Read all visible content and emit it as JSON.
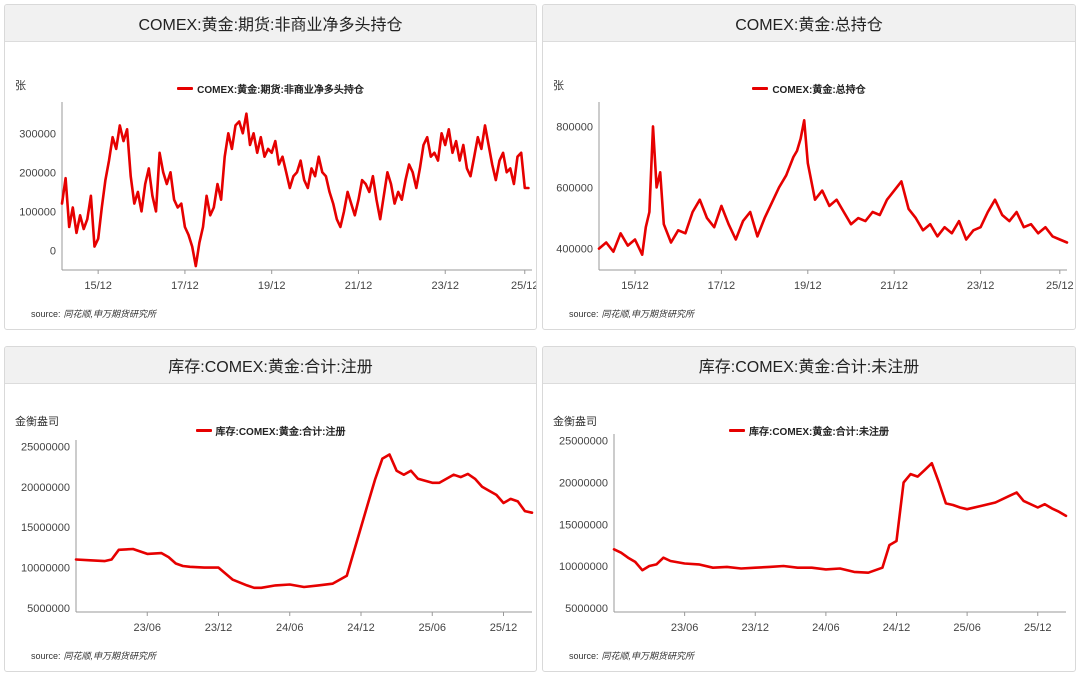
{
  "accent_color": "#e60000",
  "source_label": "source:",
  "source_name": "同花顺,申万期货研究所",
  "chart_data": [
    {
      "type": "line",
      "title": "COMEX:黄金:期货:非商业净多头持仓",
      "unit": "张",
      "legend": "COMEX:黄金:期货:非商业净多头持仓",
      "series": [
        {
          "name": "COMEX:黄金:期货:非商业净多头持仓",
          "color": "#e60000"
        }
      ],
      "x_ticks": [
        "15/12",
        "17/12",
        "19/12",
        "21/12",
        "23/12",
        "25/12"
      ],
      "y_ticks": [
        "0",
        "100000",
        "200000",
        "300000"
      ],
      "ylim": [
        -50000,
        380000
      ],
      "x_range": [
        0,
        130
      ],
      "x_tick_positions": [
        10,
        34,
        58,
        82,
        106,
        128
      ],
      "y_tick_values": [
        0,
        100000,
        200000,
        300000
      ],
      "x": [
        0,
        1,
        2,
        3,
        4,
        5,
        6,
        7,
        8,
        9,
        10,
        11,
        12,
        13,
        14,
        15,
        16,
        17,
        18,
        19,
        20,
        21,
        22,
        23,
        24,
        25,
        26,
        27,
        28,
        29,
        30,
        31,
        32,
        33,
        34,
        35,
        36,
        37,
        38,
        39,
        40,
        41,
        42,
        43,
        44,
        45,
        46,
        47,
        48,
        49,
        50,
        51,
        52,
        53,
        54,
        55,
        56,
        57,
        58,
        59,
        60,
        61,
        62,
        63,
        64,
        65,
        66,
        67,
        68,
        69,
        70,
        71,
        72,
        73,
        74,
        75,
        76,
        77,
        78,
        79,
        80,
        81,
        82,
        83,
        84,
        85,
        86,
        87,
        88,
        89,
        90,
        91,
        92,
        93,
        94,
        95,
        96,
        97,
        98,
        99,
        100,
        101,
        102,
        103,
        104,
        105,
        106,
        107,
        108,
        109,
        110,
        111,
        112,
        113,
        114,
        115,
        116,
        117,
        118,
        119,
        120,
        121,
        122,
        123,
        124,
        125,
        126,
        127,
        128,
        129
      ],
      "values": [
        120000,
        185000,
        60000,
        110000,
        45000,
        90000,
        55000,
        80000,
        140000,
        10000,
        30000,
        110000,
        180000,
        230000,
        290000,
        260000,
        320000,
        280000,
        310000,
        190000,
        120000,
        150000,
        100000,
        170000,
        210000,
        140000,
        100000,
        250000,
        200000,
        170000,
        200000,
        130000,
        110000,
        120000,
        60000,
        40000,
        10000,
        -40000,
        20000,
        60000,
        140000,
        90000,
        110000,
        170000,
        130000,
        240000,
        300000,
        260000,
        320000,
        330000,
        300000,
        350000,
        270000,
        300000,
        250000,
        290000,
        240000,
        260000,
        250000,
        280000,
        220000,
        240000,
        200000,
        160000,
        190000,
        200000,
        230000,
        180000,
        160000,
        210000,
        190000,
        240000,
        200000,
        190000,
        150000,
        120000,
        80000,
        60000,
        100000,
        150000,
        120000,
        90000,
        130000,
        180000,
        170000,
        150000,
        190000,
        130000,
        80000,
        140000,
        200000,
        170000,
        120000,
        150000,
        130000,
        180000,
        220000,
        200000,
        160000,
        210000,
        270000,
        290000,
        240000,
        250000,
        230000,
        300000,
        270000,
        310000,
        250000,
        280000,
        230000,
        270000,
        210000,
        190000,
        240000,
        290000,
        260000,
        320000,
        270000,
        220000,
        180000,
        230000,
        250000,
        200000,
        210000,
        170000,
        240000,
        250000,
        160000,
        160000
      ]
    },
    {
      "type": "line",
      "title": "COMEX:黄金:总持仓",
      "unit": "张",
      "legend": "COMEX:黄金:总持仓",
      "series": [
        {
          "name": "COMEX:黄金:总持仓",
          "color": "#e60000"
        }
      ],
      "x_ticks": [
        "15/12",
        "17/12",
        "19/12",
        "21/12",
        "23/12",
        "25/12"
      ],
      "y_ticks": [
        "400000",
        "600000",
        "800000"
      ],
      "ylim": [
        330000,
        880000
      ],
      "x_range": [
        0,
        130
      ],
      "x_tick_positions": [
        10,
        34,
        58,
        82,
        106,
        128
      ],
      "y_tick_values": [
        400000,
        600000,
        800000
      ],
      "x": [
        0,
        2,
        4,
        6,
        8,
        10,
        12,
        13,
        14,
        15,
        16,
        17,
        18,
        20,
        22,
        24,
        26,
        28,
        30,
        32,
        34,
        36,
        38,
        40,
        42,
        44,
        46,
        48,
        50,
        52,
        54,
        55,
        56,
        57,
        58,
        60,
        62,
        64,
        66,
        68,
        70,
        72,
        74,
        76,
        78,
        80,
        82,
        84,
        86,
        88,
        90,
        92,
        94,
        96,
        98,
        100,
        102,
        104,
        106,
        108,
        110,
        112,
        114,
        116,
        118,
        120,
        122,
        124,
        126,
        128,
        130
      ],
      "values": [
        400000,
        420000,
        390000,
        450000,
        410000,
        430000,
        380000,
        470000,
        520000,
        800000,
        600000,
        650000,
        480000,
        420000,
        460000,
        450000,
        520000,
        560000,
        500000,
        470000,
        540000,
        480000,
        430000,
        490000,
        520000,
        440000,
        500000,
        550000,
        600000,
        640000,
        700000,
        720000,
        760000,
        820000,
        680000,
        560000,
        590000,
        540000,
        560000,
        520000,
        480000,
        500000,
        490000,
        520000,
        510000,
        560000,
        590000,
        620000,
        530000,
        500000,
        460000,
        480000,
        440000,
        470000,
        450000,
        490000,
        430000,
        460000,
        470000,
        520000,
        560000,
        510000,
        490000,
        520000,
        470000,
        480000,
        450000,
        470000,
        440000,
        430000,
        420000
      ]
    },
    {
      "type": "line",
      "title": "库存:COMEX:黄金:合计:注册",
      "unit": "金衡盎司",
      "legend": "库存:COMEX:黄金:合计:注册",
      "series": [
        {
          "name": "库存:COMEX:黄金:合计:注册",
          "color": "#e60000"
        }
      ],
      "x_ticks": [
        "23/06",
        "23/12",
        "24/06",
        "24/12",
        "25/06",
        "25/12"
      ],
      "y_ticks": [
        "5000000",
        "10000000",
        "15000000",
        "20000000",
        "25000000"
      ],
      "ylim": [
        4500000,
        25800000
      ],
      "x_range": [
        0,
        64
      ],
      "x_tick_positions": [
        10,
        20,
        30,
        40,
        50,
        60
      ],
      "y_tick_values": [
        5000000,
        10000000,
        15000000,
        20000000,
        25000000
      ],
      "x": [
        0,
        2,
        4,
        5,
        6,
        8,
        10,
        12,
        13,
        14,
        15,
        16,
        18,
        20,
        22,
        24,
        25,
        26,
        28,
        30,
        32,
        34,
        36,
        38,
        40,
        41,
        42,
        43,
        44,
        45,
        46,
        47,
        48,
        50,
        51,
        52,
        53,
        54,
        55,
        56,
        57,
        58,
        59,
        60,
        61,
        62,
        63,
        64
      ],
      "values": [
        11000000,
        10900000,
        10800000,
        11000000,
        12200000,
        12300000,
        11700000,
        11800000,
        11300000,
        10500000,
        10200000,
        10100000,
        10000000,
        10000000,
        8500000,
        7800000,
        7500000,
        7500000,
        7800000,
        7900000,
        7600000,
        7800000,
        8000000,
        9000000,
        15000000,
        18000000,
        21000000,
        23500000,
        24000000,
        22000000,
        21500000,
        22000000,
        21000000,
        20500000,
        20500000,
        21000000,
        21500000,
        21200000,
        21600000,
        21000000,
        20000000,
        19500000,
        19000000,
        18000000,
        18500000,
        18200000,
        17000000,
        16800000
      ]
    },
    {
      "type": "line",
      "title": "库存:COMEX:黄金:合计:未注册",
      "unit": "金衡盎司",
      "legend": "库存:COMEX:黄金:合计:未注册",
      "series": [
        {
          "name": "库存:COMEX:黄金:合计:未注册",
          "color": "#e60000"
        }
      ],
      "x_ticks": [
        "23/06",
        "23/12",
        "24/06",
        "24/12",
        "25/06",
        "25/12"
      ],
      "y_ticks": [
        "5000000",
        "10000000",
        "15000000",
        "20000000",
        "25000000"
      ],
      "ylim": [
        4500000,
        25800000
      ],
      "x_range": [
        0,
        64
      ],
      "x_tick_positions": [
        10,
        20,
        30,
        40,
        50,
        60
      ],
      "y_tick_values": [
        5000000,
        10000000,
        15000000,
        20000000,
        25000000
      ],
      "x": [
        0,
        1,
        2,
        3,
        4,
        5,
        6,
        7,
        8,
        10,
        12,
        14,
        16,
        18,
        20,
        22,
        24,
        26,
        28,
        30,
        32,
        34,
        36,
        38,
        39,
        40,
        41,
        42,
        43,
        44,
        45,
        46,
        47,
        48,
        49,
        50,
        52,
        54,
        56,
        57,
        58,
        60,
        61,
        62,
        63,
        64
      ],
      "values": [
        12000000,
        11600000,
        11000000,
        10500000,
        9500000,
        10000000,
        10200000,
        11000000,
        10600000,
        10300000,
        10200000,
        9800000,
        9900000,
        9700000,
        9800000,
        9900000,
        10000000,
        9800000,
        9800000,
        9600000,
        9700000,
        9300000,
        9200000,
        9800000,
        12500000,
        13000000,
        20000000,
        21000000,
        20700000,
        21500000,
        22300000,
        20000000,
        17500000,
        17300000,
        17000000,
        16800000,
        17200000,
        17600000,
        18400000,
        18800000,
        17800000,
        17000000,
        17400000,
        16900000,
        16500000,
        16000000
      ]
    }
  ]
}
